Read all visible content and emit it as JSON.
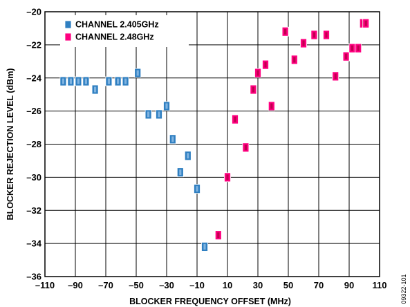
{
  "chart_data": {
    "type": "scatter",
    "title": "",
    "xlabel": "BLOCKER FREQUENCY OFFSET (MHz)",
    "ylabel": "BLOCKER REJECTION LEVEL (dBm)",
    "xlim": [
      -110,
      110
    ],
    "ylim": [
      -36,
      -20
    ],
    "xticks": [
      -110,
      -90,
      -70,
      -50,
      -30,
      -10,
      10,
      30,
      50,
      70,
      90,
      110
    ],
    "yticks": [
      -36,
      -34,
      -32,
      -30,
      -28,
      -26,
      -24,
      -22,
      -20
    ],
    "xtick_labels": [
      "–110",
      "–90",
      "–70",
      "–50",
      "–30",
      "–10",
      "10",
      "30",
      "50",
      "70",
      "90",
      "110"
    ],
    "ytick_labels": [
      "–36",
      "–34",
      "–32",
      "–30",
      "–28",
      "–26",
      "–24",
      "–22",
      "–20"
    ],
    "grid": true,
    "legend_position": "top-left",
    "figure_id": "09322-101",
    "series": [
      {
        "name": "CHANNEL 2.405GHz",
        "marker_fill": "#2f7fc1",
        "marker_inner": "#7fb3e0",
        "points": [
          [
            -98,
            -24.2
          ],
          [
            -93,
            -24.2
          ],
          [
            -88,
            -24.2
          ],
          [
            -83,
            -24.2
          ],
          [
            -77,
            -24.7
          ],
          [
            -68,
            -24.2
          ],
          [
            -62,
            -24.2
          ],
          [
            -57,
            -24.2
          ],
          [
            -49,
            -23.7
          ],
          [
            -42,
            -26.2
          ],
          [
            -35,
            -26.2
          ],
          [
            -30,
            -25.7
          ],
          [
            -26,
            -27.7
          ],
          [
            -21,
            -29.7
          ],
          [
            -16,
            -28.7
          ],
          [
            -10,
            -30.7
          ],
          [
            -5,
            -34.2
          ]
        ]
      },
      {
        "name": "CHANNEL 2.48GHz",
        "marker_fill": "#ff0080",
        "marker_inner": "#c0004e",
        "points": [
          [
            4,
            -33.5
          ],
          [
            10,
            -30
          ],
          [
            15,
            -26.5
          ],
          [
            22,
            -28.2
          ],
          [
            27,
            -24.7
          ],
          [
            30,
            -23.7
          ],
          [
            35,
            -23.2
          ],
          [
            39,
            -25.7
          ],
          [
            48,
            -21.2
          ],
          [
            54,
            -22.9
          ],
          [
            60,
            -21.9
          ],
          [
            67,
            -21.4
          ],
          [
            75,
            -21.4
          ],
          [
            81,
            -23.9
          ],
          [
            88,
            -22.7
          ],
          [
            92,
            -22.2
          ],
          [
            96,
            -22.2
          ],
          [
            99,
            -20.7
          ],
          [
            101,
            -20.7
          ]
        ]
      }
    ]
  }
}
